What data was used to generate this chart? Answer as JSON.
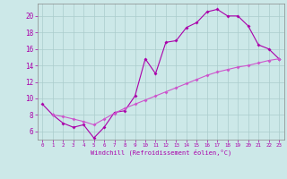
{
  "xlabel": "Windchill (Refroidissement éolien,°C)",
  "background_color": "#cce8e8",
  "grid_color": "#aacccc",
  "line_color": "#aa00aa",
  "line_color2": "#cc55cc",
  "xlim": [
    -0.5,
    23.5
  ],
  "ylim": [
    5.0,
    21.5
  ],
  "xticks": [
    0,
    1,
    2,
    3,
    4,
    5,
    6,
    7,
    8,
    9,
    10,
    11,
    12,
    13,
    14,
    15,
    16,
    17,
    18,
    19,
    20,
    21,
    22,
    23
  ],
  "yticks": [
    6,
    8,
    10,
    12,
    14,
    16,
    18,
    20
  ],
  "series1_x": [
    0,
    1,
    2,
    3,
    4,
    5,
    6,
    7,
    8,
    9,
    10,
    11,
    12,
    13,
    14,
    15,
    16,
    17,
    18,
    19,
    20,
    21,
    22,
    23
  ],
  "series1_y": [
    9.3,
    8.0,
    7.0,
    6.5,
    6.8,
    5.2,
    6.5,
    8.3,
    8.5,
    10.3,
    14.8,
    13.0,
    16.8,
    17.0,
    18.6,
    19.2,
    20.5,
    20.8,
    20.0,
    20.0,
    18.8,
    16.5,
    16.0,
    14.8
  ],
  "series2_x": [
    1,
    2,
    3,
    4,
    5,
    6,
    7,
    8,
    9,
    10,
    11,
    12,
    13,
    14,
    15,
    16,
    17,
    18,
    19,
    20,
    21,
    22,
    23
  ],
  "series2_y": [
    8.0,
    7.8,
    7.5,
    7.2,
    6.8,
    7.5,
    8.2,
    8.8,
    9.3,
    9.8,
    10.3,
    10.8,
    11.3,
    11.8,
    12.3,
    12.8,
    13.2,
    13.5,
    13.8,
    14.0,
    14.3,
    14.6,
    14.8
  ]
}
